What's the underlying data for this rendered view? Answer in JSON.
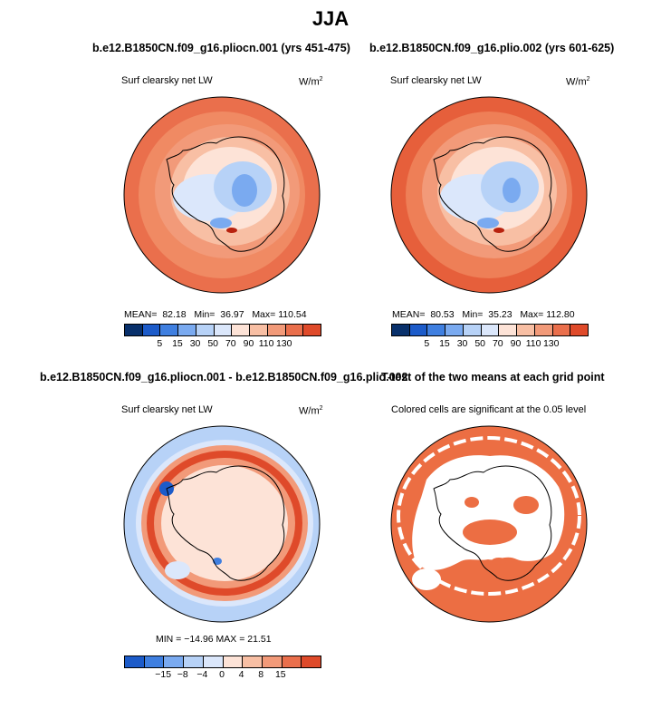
{
  "main_title": "JJA",
  "chart_data": [
    {
      "type": "heatmap",
      "title": "b.e12.B1850CN.f09_g16.pliocn.001 (yrs 451-475)",
      "subtitle_left": "Surf clearsky net LW",
      "subtitle_right": "W/m",
      "units_exp": "2",
      "stats": {
        "mean_label": "MEAN=",
        "mean": "82.18",
        "min_label": "Min=",
        "min": "36.97",
        "max_label": "Max=",
        "max": "110.54"
      },
      "colorbar_ticks": [
        "5",
        "15",
        "30",
        "50",
        "70",
        "90",
        "110",
        "130"
      ]
    },
    {
      "type": "heatmap",
      "title": "b.e12.B1850CN.f09_g16.plio.002 (yrs 601-625)",
      "subtitle_left": "Surf clearsky net LW",
      "subtitle_right": "W/m",
      "units_exp": "2",
      "stats": {
        "mean_label": "MEAN=",
        "mean": "80.53",
        "min_label": "Min=",
        "min": "35.23",
        "max_label": "Max=",
        "max": "112.80"
      },
      "colorbar_ticks": [
        "5",
        "15",
        "30",
        "50",
        "70",
        "90",
        "110",
        "130"
      ]
    },
    {
      "type": "heatmap",
      "title": "b.e12.B1850CN.f09_g16.pliocn.001 - b.e12.B1850CN.f09_g16.plio.002",
      "subtitle_left": "Surf clearsky net LW",
      "subtitle_right": "W/m",
      "units_exp": "2",
      "stats_text": "MIN = −14.96  MAX =  21.51",
      "colorbar_ticks": [
        "−15",
        "−8",
        "−4",
        "0",
        "4",
        "8",
        "15"
      ]
    },
    {
      "type": "heatmap",
      "title": "T-test of the two means at each grid point",
      "subtitle_center": "Colored cells are significant at the 0.05 level"
    }
  ],
  "colors": {
    "abs_scale": [
      "#08306b",
      "#1c5bc9",
      "#3f7fe0",
      "#7aaaf0",
      "#b7d2f7",
      "#dbe7fb",
      "#fde3d7",
      "#f8bfa4",
      "#f29a79",
      "#ea6f4c",
      "#df4a2a",
      "#b8220f",
      "#7a0c04"
    ],
    "diff_scale": [
      "#08306b",
      "#1c5bc9",
      "#3f7fe0",
      "#7aaaf0",
      "#b7d2f7",
      "#dbe7fb",
      "#fde3d7",
      "#f8bfa4",
      "#f29a79",
      "#ea6f4c",
      "#df4a2a",
      "#b8220f",
      "#7a0c04"
    ],
    "ttest": "#ec6e43"
  }
}
